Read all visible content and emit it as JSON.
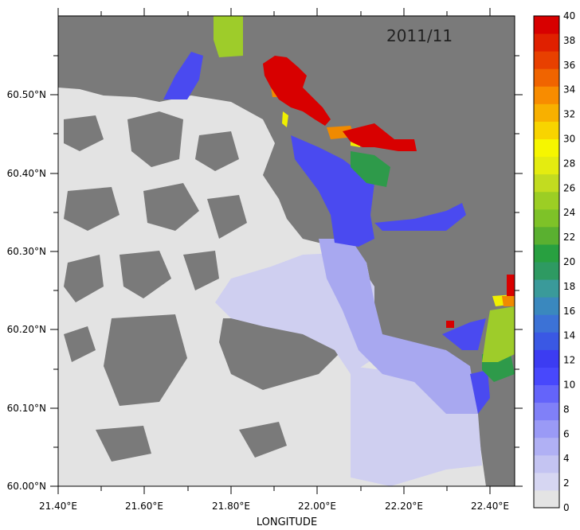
{
  "map": {
    "title": "2011/11",
    "x_axis_label": "LONGITUDE",
    "x_ticks": [
      "21.40°E",
      "21.60°E",
      "21.80°E",
      "22.00°E",
      "22.20°E",
      "22.40°E"
    ],
    "y_ticks": [
      "60.00°N",
      "60.10°N",
      "60.20°N",
      "60.30°N",
      "60.40°N",
      "60.50°N"
    ],
    "colors": {
      "land": "#7a7a7a",
      "water_zero": "#e3e3e3",
      "low": "#cfcff0",
      "mid_low": "#a8a8f0",
      "blue": "#4a4af0",
      "green": "#2e9a4a",
      "yellow_green": "#9ecc2a",
      "yellow": "#f0f000",
      "orange": "#f08a00",
      "red": "#d80000"
    }
  },
  "colorbar": {
    "labels": [
      "0",
      "2",
      "4",
      "6",
      "8",
      "10",
      "12",
      "14",
      "16",
      "18",
      "20",
      "22",
      "24",
      "26",
      "28",
      "30",
      "32",
      "34",
      "36",
      "38",
      "40"
    ],
    "colors": [
      "#e4e4e4",
      "#d6d6f2",
      "#c4c4f2",
      "#b0b0f4",
      "#9a9af6",
      "#8080f8",
      "#6464fa",
      "#4848fc",
      "#3c3cf2",
      "#3a58e4",
      "#3c72d6",
      "#3a88be",
      "#3a9a9a",
      "#2e9a62",
      "#28a040",
      "#5ab030",
      "#7ec228",
      "#9cce24",
      "#c2dc20",
      "#e4ec10",
      "#f6f600",
      "#f8d400",
      "#f8b000",
      "#f88c00",
      "#f06400",
      "#e84000",
      "#e02000",
      "#d80000"
    ]
  }
}
